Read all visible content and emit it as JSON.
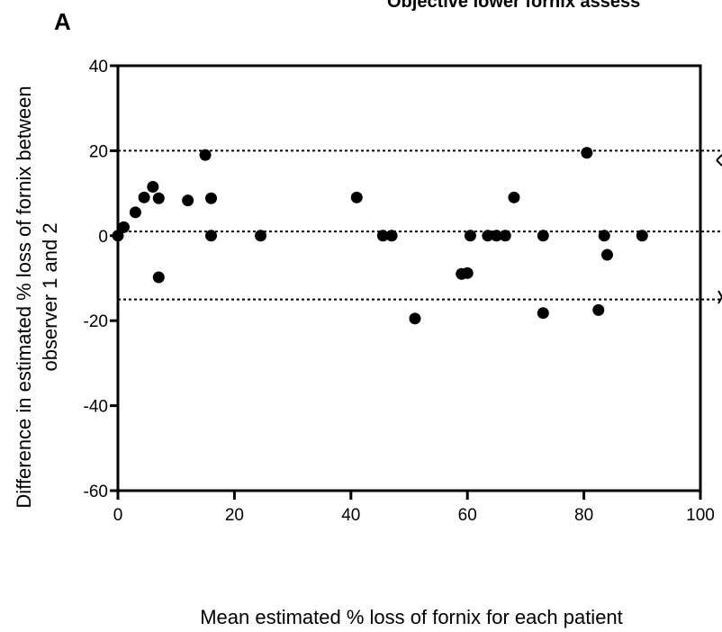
{
  "panel_label": "A",
  "chart_data": {
    "type": "scatter",
    "title": "Objective lower fornix assess",
    "xlabel": "Mean estimated % loss of fornix for each patient",
    "ylabel_lines": [
      "Difference in estimated % loss of fornix between",
      "observer 1 and 2"
    ],
    "xlim": [
      0,
      100
    ],
    "ylim": [
      -60,
      40
    ],
    "xticks": [
      0,
      20,
      40,
      60,
      80,
      100
    ],
    "yticks": [
      -60,
      -40,
      -20,
      0,
      20,
      40
    ],
    "grid": false,
    "reference_lines": [
      20,
      1,
      -15
    ],
    "points": [
      {
        "x": 0,
        "y": 0
      },
      {
        "x": 1,
        "y": 2
      },
      {
        "x": 3,
        "y": 5.5
      },
      {
        "x": 4.5,
        "y": 9
      },
      {
        "x": 6,
        "y": 11.5
      },
      {
        "x": 7,
        "y": 8.8
      },
      {
        "x": 7,
        "y": -9.8
      },
      {
        "x": 12,
        "y": 8.3
      },
      {
        "x": 15,
        "y": 19
      },
      {
        "x": 16,
        "y": 8.8
      },
      {
        "x": 16,
        "y": 0
      },
      {
        "x": 24.5,
        "y": 0
      },
      {
        "x": 41,
        "y": 9
      },
      {
        "x": 45.5,
        "y": 0
      },
      {
        "x": 47,
        "y": 0
      },
      {
        "x": 51,
        "y": -19.5
      },
      {
        "x": 59,
        "y": -9
      },
      {
        "x": 60,
        "y": -8.8
      },
      {
        "x": 60.5,
        "y": 0
      },
      {
        "x": 63.5,
        "y": 0
      },
      {
        "x": 65,
        "y": 0
      },
      {
        "x": 66.5,
        "y": 0
      },
      {
        "x": 68,
        "y": 9
      },
      {
        "x": 73,
        "y": 0
      },
      {
        "x": 73,
        "y": -18.2
      },
      {
        "x": 80.5,
        "y": 19.5
      },
      {
        "x": 82.5,
        "y": -17.5
      },
      {
        "x": 83.5,
        "y": 0
      },
      {
        "x": 84,
        "y": -4.5
      },
      {
        "x": 90,
        "y": 0
      }
    ]
  }
}
